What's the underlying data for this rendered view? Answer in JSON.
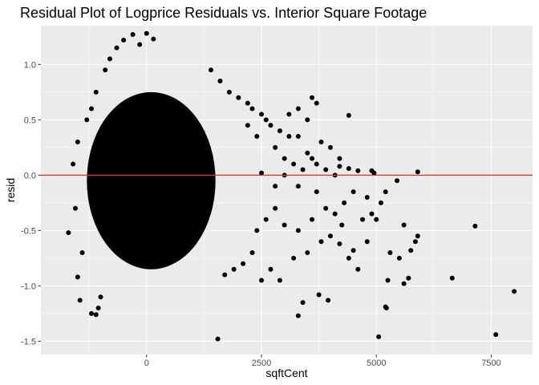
{
  "chart_data": {
    "type": "scatter",
    "title": "Residual Plot of Logprice Residuals vs. Interior Square Footage",
    "xlabel": "sqftCent",
    "ylabel": "resid",
    "xlim": [
      -2300,
      8400
    ],
    "ylim": [
      -1.62,
      1.35
    ],
    "xticks": [
      0,
      2500,
      5000,
      7500
    ],
    "xtick_labels": [
      "0",
      "2500",
      "5000",
      "7500"
    ],
    "yticks": [
      -1.5,
      -1.0,
      -0.5,
      0.0,
      0.5,
      1.0
    ],
    "ytick_labels": [
      "-1.5",
      "-1.0",
      "-0.5",
      "0.0",
      "0.5",
      "1.0"
    ],
    "grid": true,
    "reference_line": {
      "y": 0.0,
      "color": "#e0302b"
    },
    "colors": {
      "panel": "#ebebeb",
      "grid": "#ffffff",
      "point": "#000000"
    },
    "dense_cluster": {
      "x_range": [
        -1300,
        1500
      ],
      "y_range": [
        -0.85,
        0.75
      ]
    },
    "points": [
      [
        -1700,
        -0.52
      ],
      [
        -1500,
        -0.92
      ],
      [
        -1450,
        -1.13
      ],
      [
        -1200,
        -1.25
      ],
      [
        -1100,
        -1.26
      ],
      [
        -1050,
        -1.2
      ],
      [
        -1000,
        -1.1
      ],
      [
        -1300,
        0.5
      ],
      [
        -1200,
        0.6
      ],
      [
        -1100,
        0.75
      ],
      [
        -900,
        0.95
      ],
      [
        -800,
        1.05
      ],
      [
        -650,
        1.15
      ],
      [
        -500,
        1.22
      ],
      [
        -300,
        1.27
      ],
      [
        -150,
        1.18
      ],
      [
        0,
        1.28
      ],
      [
        150,
        1.23
      ],
      [
        -1500,
        0.3
      ],
      [
        -1600,
        0.1
      ],
      [
        -1550,
        -0.3
      ],
      [
        -1400,
        -0.7
      ],
      [
        1400,
        0.95
      ],
      [
        1600,
        0.85
      ],
      [
        1800,
        0.75
      ],
      [
        2000,
        0.7
      ],
      [
        2200,
        0.65
      ],
      [
        2300,
        0.6
      ],
      [
        2500,
        0.55
      ],
      [
        2700,
        0.45
      ],
      [
        2900,
        0.4
      ],
      [
        3100,
        0.35
      ],
      [
        3300,
        0.6
      ],
      [
        3500,
        0.5
      ],
      [
        3600,
        0.7
      ],
      [
        3700,
        0.65
      ],
      [
        3100,
        0.55
      ],
      [
        2800,
        0.25
      ],
      [
        3000,
        0.15
      ],
      [
        3200,
        0.1
      ],
      [
        3400,
        0.05
      ],
      [
        3600,
        0.15
      ],
      [
        3700,
        0.1
      ],
      [
        3900,
        0.05
      ],
      [
        4100,
        0.0
      ],
      [
        4200,
        0.08
      ],
      [
        4400,
        0.06
      ],
      [
        4600,
        0.04
      ],
      [
        4900,
        0.04
      ],
      [
        4950,
        0.02
      ],
      [
        5900,
        0.03
      ],
      [
        4400,
        0.54
      ],
      [
        4200,
        0.15
      ],
      [
        5000,
        -0.4
      ],
      [
        5200,
        -0.15
      ],
      [
        5450,
        -0.05
      ],
      [
        5600,
        -0.45
      ],
      [
        5850,
        -0.6
      ],
      [
        5900,
        -0.55
      ],
      [
        5750,
        -0.68
      ],
      [
        5250,
        -0.95
      ],
      [
        5200,
        -1.19
      ],
      [
        5220,
        -1.2
      ],
      [
        5050,
        -1.46
      ],
      [
        5600,
        -0.98
      ],
      [
        5700,
        -0.93
      ],
      [
        6650,
        -0.93
      ],
      [
        7150,
        -0.46
      ],
      [
        7600,
        -1.44
      ],
      [
        8000,
        -1.05
      ],
      [
        1550,
        -1.48
      ],
      [
        3300,
        -1.27
      ],
      [
        3400,
        -1.15
      ],
      [
        3750,
        -1.08
      ],
      [
        3950,
        -1.13
      ],
      [
        2700,
        -0.85
      ],
      [
        2900,
        -0.95
      ],
      [
        3200,
        -0.75
      ],
      [
        3500,
        -0.7
      ],
      [
        3800,
        -0.6
      ],
      [
        4000,
        -0.55
      ],
      [
        4200,
        -0.62
      ],
      [
        4500,
        -0.68
      ],
      [
        4800,
        -0.6
      ],
      [
        5300,
        -0.7
      ],
      [
        5500,
        -0.75
      ],
      [
        4600,
        -0.85
      ],
      [
        4400,
        -0.75
      ],
      [
        4250,
        -0.45
      ],
      [
        4700,
        -0.4
      ],
      [
        4900,
        -0.35
      ],
      [
        3900,
        -0.3
      ],
      [
        4100,
        -0.35
      ],
      [
        3600,
        -0.4
      ],
      [
        4300,
        -0.25
      ],
      [
        2400,
        -0.5
      ],
      [
        2600,
        -0.4
      ],
      [
        2800,
        -0.3
      ],
      [
        3000,
        -0.45
      ],
      [
        3300,
        -0.5
      ],
      [
        2100,
        -0.8
      ],
      [
        2300,
        -0.7
      ],
      [
        1900,
        -0.85
      ],
      [
        1700,
        -0.9
      ],
      [
        2500,
        -0.95
      ],
      [
        3800,
        0.3
      ],
      [
        4000,
        0.25
      ],
      [
        3300,
        0.35
      ],
      [
        3500,
        0.2
      ],
      [
        2600,
        0.5
      ],
      [
        2400,
        0.35
      ],
      [
        2200,
        0.45
      ],
      [
        3000,
        0.0
      ],
      [
        3300,
        -0.1
      ],
      [
        3700,
        -0.15
      ],
      [
        4500,
        -0.15
      ],
      [
        4800,
        -0.2
      ],
      [
        5100,
        -0.25
      ],
      [
        2500,
        0.02
      ],
      [
        2800,
        -0.1
      ]
    ]
  }
}
